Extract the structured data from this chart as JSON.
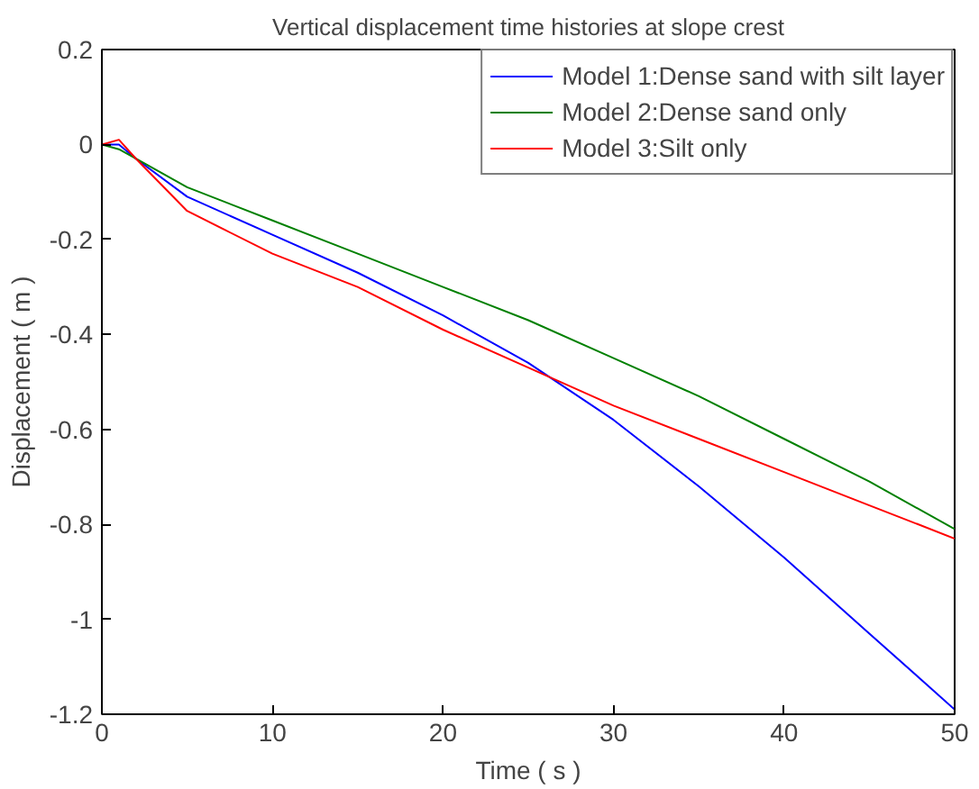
{
  "chart_data": {
    "type": "line",
    "title": "Vertical displacement time histories at slope crest",
    "xlabel": "Time ( s )",
    "ylabel": "Displacement ( m )",
    "xlim": [
      0,
      50
    ],
    "xticks": [
      0,
      10,
      20,
      30,
      40,
      50
    ],
    "ylim": [
      -1.2,
      0.2
    ],
    "yticks": [
      -1.2,
      -1,
      -0.8,
      -0.6,
      -0.4,
      -0.2,
      0,
      0.2
    ],
    "grid": false,
    "legend": "top right",
    "marker": "none",
    "line_style": "solid",
    "series": [
      {
        "name": "Model 1:Dense sand with silt layer",
        "color": "#0000ff",
        "x": [
          0,
          1,
          2,
          5,
          10,
          15,
          20,
          25,
          30,
          35,
          40,
          45,
          50
        ],
        "values": [
          0,
          0,
          -0.03,
          -0.11,
          -0.19,
          -0.27,
          -0.36,
          -0.46,
          -0.58,
          -0.72,
          -0.87,
          -1.03,
          -1.19
        ]
      },
      {
        "name": "Model 2:Dense sand only",
        "color": "#008000",
        "x": [
          0,
          1,
          2,
          5,
          10,
          15,
          20,
          25,
          30,
          35,
          40,
          45,
          50
        ],
        "values": [
          0,
          -0.01,
          -0.03,
          -0.09,
          -0.16,
          -0.23,
          -0.3,
          -0.37,
          -0.45,
          -0.53,
          -0.62,
          -0.71,
          -0.81
        ]
      },
      {
        "name": "Model 3:Silt only",
        "color": "#ff0000",
        "x": [
          0,
          1,
          2,
          5,
          10,
          15,
          20,
          25,
          30,
          35,
          40,
          45,
          50
        ],
        "values": [
          0,
          0.01,
          -0.03,
          -0.14,
          -0.23,
          -0.3,
          -0.39,
          -0.47,
          -0.55,
          -0.62,
          -0.69,
          -0.76,
          -0.83
        ]
      }
    ]
  }
}
